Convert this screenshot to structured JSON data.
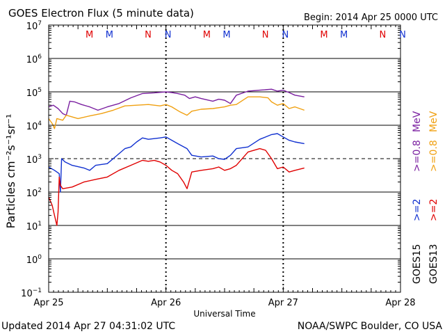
{
  "chart_data": {
    "type": "line",
    "title": "GOES Electron Flux (5 minute data)",
    "begin_label": "Begin: 2014 Apr 25 0000 UTC",
    "xlabel": "Universal Time",
    "ylabel": "Particles cm⁻²s⁻¹sr⁻¹",
    "x_unit": "days since 2014 Apr 25 0000 UTC",
    "xlim": [
      0,
      3
    ],
    "ylim_log10": [
      -1,
      7
    ],
    "x_ticks": [
      {
        "x": 0,
        "label": "Apr 25"
      },
      {
        "x": 1,
        "label": "Apr 26"
      },
      {
        "x": 2,
        "label": "Apr 27"
      },
      {
        "x": 3,
        "label": "Apr 28"
      }
    ],
    "y_ticks": [
      {
        "exp": 7,
        "label": "10",
        "sup": "7"
      },
      {
        "exp": 6,
        "label": "10",
        "sup": "6"
      },
      {
        "exp": 5,
        "label": "10",
        "sup": "5"
      },
      {
        "exp": 4,
        "label": "10",
        "sup": "4"
      },
      {
        "exp": 3,
        "label": "10",
        "sup": "3"
      },
      {
        "exp": 2,
        "label": "10",
        "sup": "2"
      },
      {
        "exp": 1,
        "label": "10",
        "sup": "1"
      },
      {
        "exp": 0,
        "label": "10",
        "sup": "0"
      },
      {
        "exp": -1,
        "label": "10",
        "sup": "−1"
      }
    ],
    "threshold_log10": 3,
    "markers": [
      {
        "x": 0.33,
        "label": "M",
        "color": "#e00000"
      },
      {
        "x": 0.5,
        "label": "M",
        "color": "#1030d0"
      },
      {
        "x": 0.83,
        "label": "N",
        "color": "#e00000"
      },
      {
        "x": 1.0,
        "label": "N",
        "color": "#1030d0"
      },
      {
        "x": 1.33,
        "label": "M",
        "color": "#e00000"
      },
      {
        "x": 1.5,
        "label": "M",
        "color": "#1030d0"
      },
      {
        "x": 1.83,
        "label": "N",
        "color": "#e00000"
      },
      {
        "x": 2.0,
        "label": "N",
        "color": "#1030d0"
      },
      {
        "x": 2.33,
        "label": "M",
        "color": "#e00000"
      },
      {
        "x": 2.5,
        "label": "M",
        "color": "#1030d0"
      },
      {
        "x": 2.83,
        "label": "N",
        "color": "#e00000"
      },
      {
        "x": 3.0,
        "label": "N",
        "color": "#1030d0"
      }
    ],
    "series": [
      {
        "name": "GOES15 >=0.8 MeV",
        "color": "#7a1fa0",
        "points": [
          [
            0,
            4.55
          ],
          [
            0.04,
            4.6
          ],
          [
            0.08,
            4.5
          ],
          [
            0.12,
            4.35
          ],
          [
            0.15,
            4.3
          ],
          [
            0.18,
            4.72
          ],
          [
            0.22,
            4.7
          ],
          [
            0.28,
            4.62
          ],
          [
            0.35,
            4.55
          ],
          [
            0.42,
            4.45
          ],
          [
            0.5,
            4.55
          ],
          [
            0.6,
            4.65
          ],
          [
            0.7,
            4.82
          ],
          [
            0.8,
            4.95
          ],
          [
            0.9,
            4.97
          ],
          [
            1.0,
            5.0
          ],
          [
            1.05,
            4.98
          ],
          [
            1.1,
            4.95
          ],
          [
            1.16,
            4.9
          ],
          [
            1.2,
            4.8
          ],
          [
            1.25,
            4.85
          ],
          [
            1.3,
            4.8
          ],
          [
            1.4,
            4.72
          ],
          [
            1.45,
            4.78
          ],
          [
            1.5,
            4.75
          ],
          [
            1.55,
            4.65
          ],
          [
            1.6,
            4.9
          ],
          [
            1.7,
            5.02
          ],
          [
            1.8,
            5.05
          ],
          [
            1.9,
            5.08
          ],
          [
            1.95,
            5.02
          ],
          [
            2.0,
            5.05
          ],
          [
            2.05,
            4.98
          ],
          [
            2.1,
            4.9
          ],
          [
            2.18,
            4.85
          ]
        ]
      },
      {
        "name": "GOES13 >=0.8 MeV",
        "color": "#f0a010",
        "points": [
          [
            0,
            4.2
          ],
          [
            0.03,
            4.05
          ],
          [
            0.05,
            3.9
          ],
          [
            0.07,
            4.2
          ],
          [
            0.12,
            4.15
          ],
          [
            0.15,
            4.3
          ],
          [
            0.25,
            4.2
          ],
          [
            0.35,
            4.28
          ],
          [
            0.45,
            4.35
          ],
          [
            0.55,
            4.45
          ],
          [
            0.65,
            4.58
          ],
          [
            0.75,
            4.6
          ],
          [
            0.85,
            4.62
          ],
          [
            0.95,
            4.58
          ],
          [
            1.0,
            4.62
          ],
          [
            1.05,
            4.55
          ],
          [
            1.12,
            4.4
          ],
          [
            1.18,
            4.3
          ],
          [
            1.22,
            4.42
          ],
          [
            1.3,
            4.48
          ],
          [
            1.4,
            4.5
          ],
          [
            1.5,
            4.55
          ],
          [
            1.55,
            4.6
          ],
          [
            1.6,
            4.62
          ],
          [
            1.7,
            4.85
          ],
          [
            1.8,
            4.85
          ],
          [
            1.87,
            4.82
          ],
          [
            1.9,
            4.7
          ],
          [
            1.95,
            4.6
          ],
          [
            2.0,
            4.65
          ],
          [
            2.05,
            4.5
          ],
          [
            2.1,
            4.55
          ],
          [
            2.18,
            4.45
          ]
        ]
      },
      {
        "name": "GOES15 >=2 MeV",
        "color": "#1030d0",
        "points": [
          [
            0,
            2.75
          ],
          [
            0.05,
            2.65
          ],
          [
            0.09,
            2.55
          ],
          [
            0.1,
            2.0
          ],
          [
            0.11,
            3.0
          ],
          [
            0.14,
            2.9
          ],
          [
            0.2,
            2.8
          ],
          [
            0.3,
            2.72
          ],
          [
            0.35,
            2.65
          ],
          [
            0.4,
            2.8
          ],
          [
            0.5,
            2.85
          ],
          [
            0.55,
            3.0
          ],
          [
            0.65,
            3.3
          ],
          [
            0.7,
            3.35
          ],
          [
            0.75,
            3.5
          ],
          [
            0.8,
            3.62
          ],
          [
            0.85,
            3.58
          ],
          [
            0.9,
            3.6
          ],
          [
            0.95,
            3.62
          ],
          [
            1.0,
            3.65
          ],
          [
            1.05,
            3.55
          ],
          [
            1.1,
            3.45
          ],
          [
            1.18,
            3.3
          ],
          [
            1.22,
            3.1
          ],
          [
            1.3,
            3.05
          ],
          [
            1.4,
            3.08
          ],
          [
            1.45,
            3.0
          ],
          [
            1.5,
            2.98
          ],
          [
            1.55,
            3.1
          ],
          [
            1.6,
            3.3
          ],
          [
            1.7,
            3.35
          ],
          [
            1.8,
            3.58
          ],
          [
            1.9,
            3.72
          ],
          [
            1.95,
            3.75
          ],
          [
            2.0,
            3.65
          ],
          [
            2.05,
            3.55
          ],
          [
            2.1,
            3.5
          ],
          [
            2.18,
            3.45
          ]
        ]
      },
      {
        "name": "GOES13 >=2 MeV",
        "color": "#e00000",
        "points": [
          [
            0,
            1.85
          ],
          [
            0.03,
            1.6
          ],
          [
            0.05,
            1.3
          ],
          [
            0.07,
            1.0
          ],
          [
            0.08,
            1.4
          ],
          [
            0.09,
            2.45
          ],
          [
            0.1,
            2.2
          ],
          [
            0.12,
            2.1
          ],
          [
            0.2,
            2.15
          ],
          [
            0.3,
            2.3
          ],
          [
            0.4,
            2.38
          ],
          [
            0.5,
            2.45
          ],
          [
            0.6,
            2.65
          ],
          [
            0.7,
            2.8
          ],
          [
            0.8,
            2.95
          ],
          [
            0.85,
            2.92
          ],
          [
            0.9,
            2.95
          ],
          [
            0.95,
            2.9
          ],
          [
            1.0,
            2.8
          ],
          [
            1.05,
            2.65
          ],
          [
            1.1,
            2.55
          ],
          [
            1.15,
            2.3
          ],
          [
            1.18,
            2.1
          ],
          [
            1.22,
            2.6
          ],
          [
            1.3,
            2.65
          ],
          [
            1.4,
            2.7
          ],
          [
            1.45,
            2.75
          ],
          [
            1.5,
            2.65
          ],
          [
            1.55,
            2.7
          ],
          [
            1.6,
            2.8
          ],
          [
            1.7,
            3.2
          ],
          [
            1.8,
            3.3
          ],
          [
            1.85,
            3.25
          ],
          [
            1.9,
            3.0
          ],
          [
            1.95,
            2.7
          ],
          [
            2.0,
            2.75
          ],
          [
            2.05,
            2.6
          ],
          [
            2.1,
            2.65
          ],
          [
            2.18,
            2.72
          ]
        ]
      }
    ],
    "right_labels": [
      {
        "text": "GOES15",
        "color": "#000000"
      },
      {
        "text": "GOES13",
        "color": "#000000"
      },
      {
        "text": ">=2",
        "color": "#1030d0"
      },
      {
        "text": ">=2",
        "color": "#e00000"
      },
      {
        "text": ">=0.8",
        "color": "#7a1fa0"
      },
      {
        "text": ">=0.8",
        "color": "#f0a010"
      },
      {
        "text": "MeV",
        "color": "#7a1fa0"
      },
      {
        "text": "MeV",
        "color": "#f0a010"
      }
    ]
  },
  "footer": {
    "updated": "Updated 2014 Apr 27 04:31:02 UTC",
    "source": "NOAA/SWPC Boulder, CO USA"
  }
}
